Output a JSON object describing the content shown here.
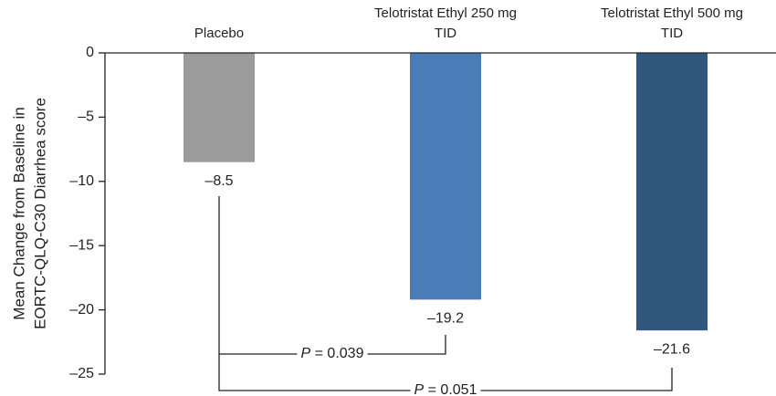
{
  "chart_data": {
    "type": "bar",
    "categories": [
      "Placebo",
      "Telotristat Ethyl 250 mg TID",
      "Telotristat Ethyl 500 mg TID"
    ],
    "values": [
      -8.5,
      -19.2,
      -21.6
    ],
    "value_labels": [
      "–8.5",
      "–19.2",
      "–21.6"
    ],
    "colors": [
      "#9b9b9b",
      "#4a7db8",
      "#31577c"
    ],
    "ylabel": [
      "Mean Change from Baseline in",
      "EORTC-QLQ-C30 Diarrhea score"
    ],
    "ylim": [
      0,
      -25
    ],
    "yticks": [
      0,
      {
        "value": -5,
        "label": "–5"
      },
      {
        "value": -10,
        "label": "–10"
      },
      {
        "value": -15,
        "label": "–15"
      },
      {
        "value": -20,
        "label": "–20"
      },
      {
        "value": -25,
        "label": "–25"
      }
    ],
    "annotations": [
      "P = 0.039",
      "P = 0.051"
    ]
  }
}
